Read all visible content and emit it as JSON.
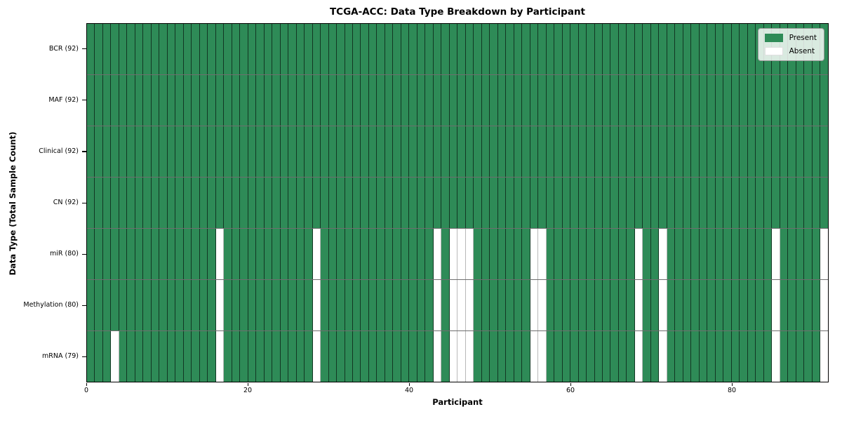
{
  "figure": {
    "background": "#ffffff"
  },
  "chart_data": {
    "type": "heatmap",
    "title": "TCGA-ACC: Data Type Breakdown by Participant",
    "xlabel": "Participant",
    "ylabel": "Data Type (Total Sample Count)",
    "x_ticks": [
      0,
      20,
      40,
      60,
      80
    ],
    "x_range": [
      0,
      92
    ],
    "n_participants": 92,
    "legend_position": "upper right",
    "legend": {
      "entries": [
        {
          "label": "Present",
          "color": "#2e8b57"
        },
        {
          "label": "Absent",
          "color": "#ffffff"
        }
      ]
    },
    "colors": {
      "present": "#2e8b57",
      "absent": "#ffffff",
      "row_separator": "#6e6e6e",
      "cell_edge_present": "rgba(0,0,0,0.60)",
      "cell_edge_absent": "#b9b9b9"
    },
    "rows": [
      {
        "label": "BCR (92)",
        "data_type": "BCR",
        "total_samples": 92,
        "absent_participants": []
      },
      {
        "label": "MAF (92)",
        "data_type": "MAF",
        "total_samples": 92,
        "absent_participants": []
      },
      {
        "label": "Clinical (92)",
        "data_type": "Clinical",
        "total_samples": 92,
        "absent_participants": []
      },
      {
        "label": "CN (92)",
        "data_type": "CN",
        "total_samples": 92,
        "absent_participants": []
      },
      {
        "label": "miR (80)",
        "data_type": "miR",
        "total_samples": 80,
        "absent_participants": [
          16,
          28,
          43,
          45,
          46,
          47,
          55,
          56,
          68,
          71,
          85,
          91
        ]
      },
      {
        "label": "Methylation (80)",
        "data_type": "Methylation",
        "total_samples": 80,
        "absent_participants": [
          16,
          28,
          43,
          45,
          46,
          47,
          55,
          56,
          68,
          71,
          85,
          91
        ]
      },
      {
        "label": "mRNA (79)",
        "data_type": "mRNA",
        "total_samples": 79,
        "absent_participants": [
          3,
          16,
          28,
          43,
          45,
          46,
          47,
          55,
          56,
          68,
          71,
          85,
          91
        ]
      }
    ]
  }
}
